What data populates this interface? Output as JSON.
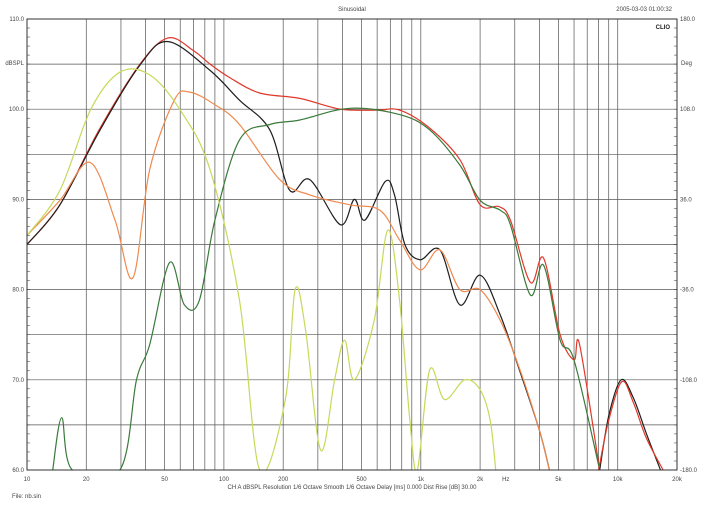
{
  "header": {
    "title": "Sinusoidal",
    "timestamp": "2005-03-03 01:00:32",
    "logo": "CLIO"
  },
  "footer": {
    "settings": "CH A   dBSPL   Resolution 1/6 Octave   Smooth 1/6 Octave   Delay [ms] 0.000   Dist Rise [dB] 30.00",
    "file": "File: nb.sin"
  },
  "chart_data": {
    "type": "line",
    "title": "Sinusoidal",
    "xlabel": "Hz",
    "ylabel": "dBSPL",
    "y2label": "Deg",
    "xscale": "log",
    "xlim": [
      10,
      20000
    ],
    "ylim": [
      60,
      110
    ],
    "y2lim": [
      -180,
      180
    ],
    "grid": true,
    "x_ticks": [
      "10",
      "20",
      "50",
      "100",
      "200",
      "500",
      "1k",
      "2k",
      "5k",
      "10k",
      "20k"
    ],
    "x_tick_values": [
      10,
      20,
      50,
      100,
      200,
      500,
      1000,
      2000,
      5000,
      10000,
      20000
    ],
    "y_ticks": [
      "110.0",
      "100.0",
      "90.0",
      "80.0",
      "70.0",
      "60.0"
    ],
    "y2_ticks": [
      "180.0",
      "108.0",
      "36.0",
      "-36.0",
      "-108.0",
      "-180.0"
    ],
    "series": [
      {
        "color": "#e0382a",
        "points": [
          [
            10,
            85
          ],
          [
            14.7,
            89.4
          ],
          [
            23.5,
            97.9
          ],
          [
            37.5,
            105
          ],
          [
            52,
            107.9
          ],
          [
            70,
            106.5
          ],
          [
            85,
            105
          ],
          [
            107,
            103.5
          ],
          [
            152,
            101.8
          ],
          [
            243,
            101.2
          ],
          [
            390,
            100
          ],
          [
            600,
            99.9
          ],
          [
            780,
            99.9
          ],
          [
            1110,
            97.9
          ],
          [
            1580,
            94.4
          ],
          [
            2000,
            89.4
          ],
          [
            2500,
            89.2
          ],
          [
            2850,
            87.7
          ],
          [
            3600,
            80.8
          ],
          [
            4200,
            83.5
          ],
          [
            5100,
            75
          ],
          [
            6000,
            72.2
          ],
          [
            6400,
            73.9
          ],
          [
            8100,
            60
          ]
        ]
      },
      {
        "color": "#1e1e1e",
        "points": [
          [
            10,
            85
          ],
          [
            14.7,
            89.4
          ],
          [
            23.5,
            97.7
          ],
          [
            37.5,
            104.9
          ],
          [
            52,
            107.5
          ],
          [
            85,
            104.3
          ],
          [
            120,
            101
          ],
          [
            171,
            97.7
          ],
          [
            216,
            91
          ],
          [
            273,
            92.2
          ],
          [
            390,
            87.2
          ],
          [
            460,
            90
          ],
          [
            520,
            87.7
          ],
          [
            660,
            92
          ],
          [
            735,
            90.5
          ],
          [
            830,
            85
          ],
          [
            990,
            83.3
          ],
          [
            1250,
            84.4
          ],
          [
            1580,
            78.3
          ],
          [
            2000,
            81.6
          ],
          [
            2530,
            77.2
          ],
          [
            3180,
            71
          ],
          [
            4000,
            64.4
          ],
          [
            4500,
            60
          ]
        ]
      },
      {
        "color": "#f08a50",
        "points": [
          [
            10,
            86
          ],
          [
            14.7,
            89.9
          ],
          [
            20.9,
            94.1
          ],
          [
            28,
            87.7
          ],
          [
            34.5,
            81.3
          ],
          [
            42,
            93.3
          ],
          [
            56,
            101
          ],
          [
            67,
            101.9
          ],
          [
            90,
            100.5
          ],
          [
            120,
            98.3
          ],
          [
            192,
            92.2
          ],
          [
            273,
            90.5
          ],
          [
            436,
            89.4
          ],
          [
            620,
            88.8
          ],
          [
            780,
            85.5
          ],
          [
            990,
            82.2
          ],
          [
            1250,
            84.4
          ],
          [
            1580,
            80
          ],
          [
            2000,
            80
          ],
          [
            2530,
            76.6
          ],
          [
            3180,
            71.2
          ],
          [
            4000,
            64.4
          ],
          [
            4500,
            60
          ]
        ]
      },
      {
        "color": "#3a7a3a",
        "points": [
          [
            13.5,
            60
          ],
          [
            15,
            65.8
          ],
          [
            17,
            60
          ],
          [
            29.6,
            60
          ],
          [
            36,
            70
          ],
          [
            42,
            73.9
          ],
          [
            53,
            83
          ],
          [
            63,
            78.3
          ],
          [
            75,
            78.8
          ],
          [
            90,
            87.7
          ],
          [
            120,
            96.6
          ],
          [
            171,
            98.3
          ],
          [
            243,
            98.8
          ],
          [
            436,
            100.1
          ],
          [
            780,
            99.4
          ],
          [
            1110,
            97.7
          ],
          [
            1580,
            93.8
          ],
          [
            2000,
            89.9
          ],
          [
            2530,
            88.8
          ],
          [
            2850,
            87.2
          ],
          [
            3600,
            79.4
          ],
          [
            4200,
            82.7
          ],
          [
            5100,
            74.4
          ],
          [
            6000,
            72.2
          ],
          [
            8100,
            60
          ]
        ]
      },
      {
        "color": "#c8d85a",
        "points": [
          [
            10,
            86
          ],
          [
            14.7,
            91
          ],
          [
            21,
            99.9
          ],
          [
            29.6,
            104.1
          ],
          [
            42,
            103.8
          ],
          [
            60,
            99.9
          ],
          [
            85,
            93.3
          ],
          [
            120,
            78.8
          ],
          [
            152,
            60
          ],
          [
            205,
            67.8
          ],
          [
            230,
            80
          ],
          [
            260,
            75.5
          ],
          [
            310,
            62.2
          ],
          [
            365,
            70
          ],
          [
            410,
            74.4
          ],
          [
            460,
            70
          ],
          [
            580,
            76.6
          ],
          [
            680,
            86.6
          ],
          [
            780,
            78.8
          ],
          [
            880,
            65.5
          ],
          [
            960,
            60
          ],
          [
            1110,
            71.1
          ],
          [
            1320,
            67.8
          ],
          [
            1670,
            70
          ],
          [
            2000,
            68.9
          ],
          [
            2250,
            65.5
          ],
          [
            2400,
            60
          ]
        ]
      },
      {
        "color": "#1e1e1e",
        "points": [
          [
            8100,
            60
          ],
          [
            9000,
            66
          ],
          [
            10400,
            70
          ],
          [
            12000,
            68
          ],
          [
            14000,
            64
          ],
          [
            16500,
            60
          ]
        ]
      },
      {
        "color": "#e0382a",
        "points": [
          [
            8000,
            60
          ],
          [
            9000,
            65.5
          ],
          [
            10500,
            69.8
          ],
          [
            12000,
            67.5
          ],
          [
            14000,
            63.5
          ],
          [
            17000,
            60
          ]
        ]
      }
    ]
  }
}
